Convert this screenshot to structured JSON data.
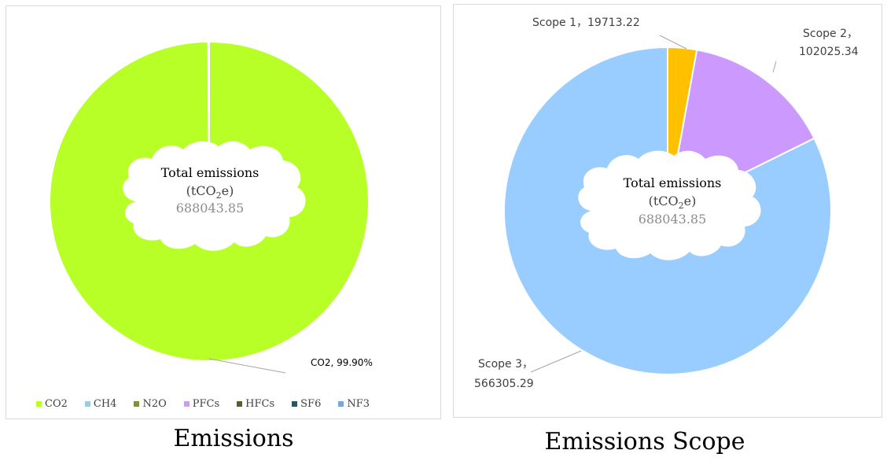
{
  "chart_data": [
    {
      "type": "pie",
      "categories": [
        "CO2",
        "CH4",
        "N2O",
        "PFCs",
        "HFCs",
        "SF6",
        "NF3"
      ],
      "values": [
        99.9,
        0.04,
        0.03,
        0.01,
        0.01,
        0.005,
        0.005
      ],
      "colors": [
        "#b7ff27",
        "#9bcde0",
        "#77933c",
        "#c6a2ea",
        "#4f6228",
        "#215968",
        "#7aa7d6"
      ],
      "data_label": "CO2, 99.90%",
      "center": {
        "line1": "Total emissions",
        "line2_prefix": "(tCO",
        "line2_sub": "2",
        "line2_suffix": "e)",
        "value": "688043.85"
      },
      "legend": {
        "position": "bottom"
      },
      "caption": "Emissions"
    },
    {
      "type": "pie",
      "categories": [
        "Scope 1",
        "Scope 2",
        "Scope 3"
      ],
      "values": [
        19713.22,
        102025.34,
        566305.29
      ],
      "colors": [
        "#ffc000",
        "#cc99ff",
        "#99ccff"
      ],
      "labels": [
        "Scope 1，19713.22",
        "Scope 2，",
        "102025.34",
        "Scope 3，",
        "566305.29"
      ],
      "center": {
        "line1": "Total emissions",
        "line2_prefix": "(tCO",
        "line2_sub": "2",
        "line2_suffix": "e)",
        "value": "688043.85"
      },
      "caption": "Emissions Scope"
    }
  ]
}
